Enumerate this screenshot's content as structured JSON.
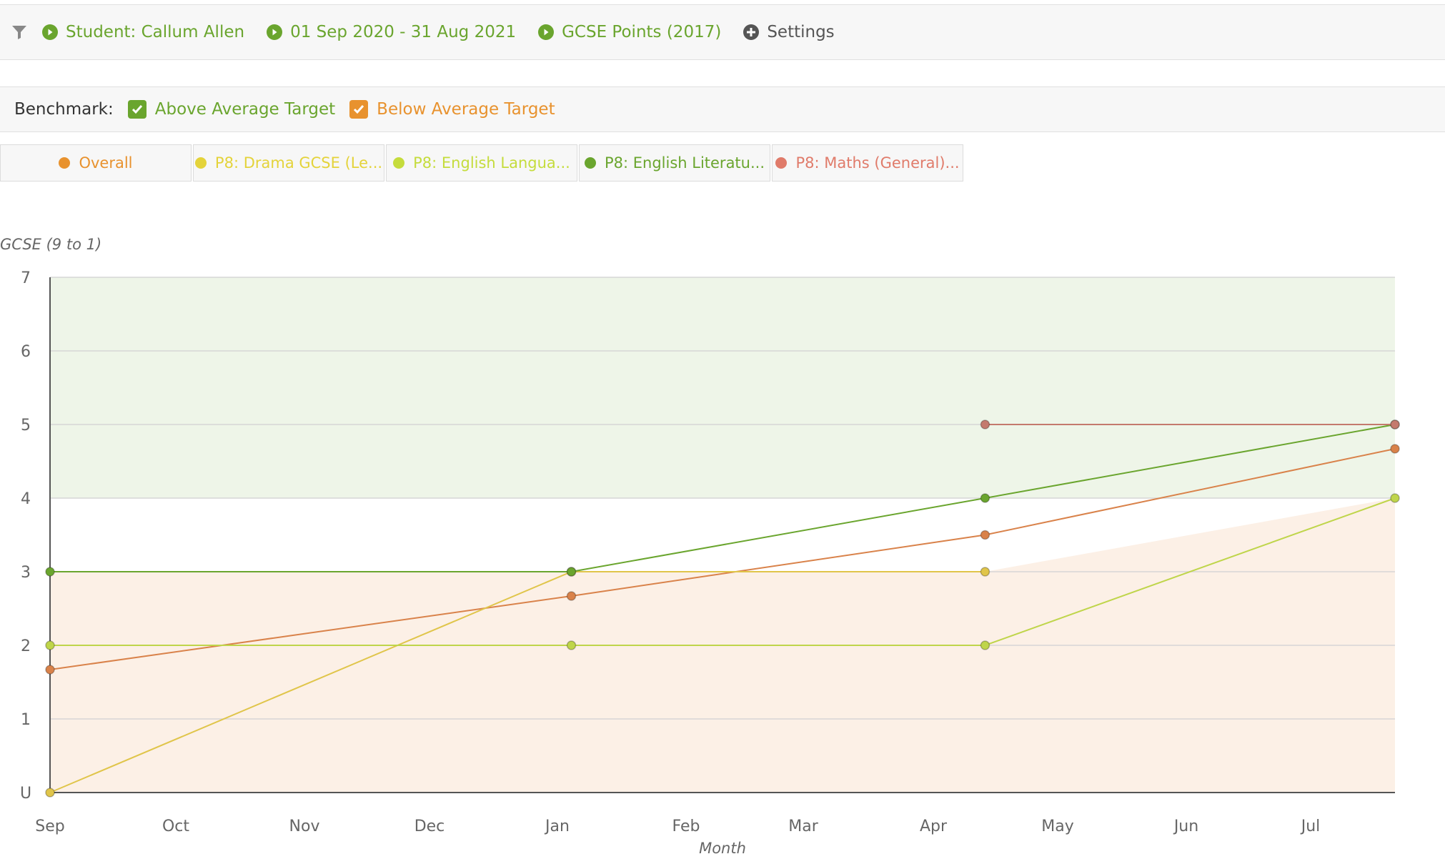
{
  "filters": {
    "student": "Student: Callum Allen",
    "date_range": "01 Sep 2020 - 31 Aug 2021",
    "points": "GCSE Points (2017)",
    "settings": "Settings"
  },
  "benchmark": {
    "label": "Benchmark:",
    "above": {
      "label": "Above Average Target",
      "checked": true,
      "color": "#6aa52e"
    },
    "below": {
      "label": "Below Average Target",
      "checked": true,
      "color": "#e8922e"
    }
  },
  "tabs": [
    {
      "label": "Overall",
      "color": "#e8922e"
    },
    {
      "label": "P8: Drama GCSE (Le...",
      "color": "#e4d33a"
    },
    {
      "label": "P8: English Langua...",
      "color": "#c5dc3c"
    },
    {
      "label": "P8: English Literatu...",
      "color": "#6aa52e"
    },
    {
      "label": "P8: Maths (General)...",
      "color": "#e07b6a"
    }
  ],
  "chart_data": {
    "type": "line",
    "ylabel": "GCSE (9 to 1)",
    "xlabel": "Month",
    "yticks": [
      "U",
      "1",
      "2",
      "3",
      "4",
      "5",
      "6",
      "7"
    ],
    "ylim": [
      0,
      7
    ],
    "xticks": [
      "Sep",
      "Oct",
      "Nov",
      "Dec",
      "Jan",
      "Feb",
      "Mar",
      "Apr",
      "May",
      "Jun",
      "Jul"
    ],
    "grid": true,
    "bands": [
      {
        "name": "Above Average Target",
        "color": "#eef5e8",
        "lower": [
          [
            0,
            4
          ],
          [
            10.5,
            4
          ]
        ],
        "upper": [
          [
            0,
            7
          ],
          [
            10.5,
            7
          ]
        ]
      },
      {
        "name": "Below Average Target",
        "color": "#fcf0e6",
        "lower": [
          [
            0,
            0
          ],
          [
            10.5,
            0
          ]
        ],
        "upper": [
          [
            0,
            3
          ],
          [
            7.3,
            3
          ],
          [
            10.5,
            4
          ]
        ]
      }
    ],
    "series": [
      {
        "name": "Overall",
        "color": "#d9824a",
        "points": [
          [
            0,
            1.67
          ],
          [
            4.07,
            2.67
          ],
          [
            7.3,
            3.5
          ],
          [
            10.5,
            4.67
          ]
        ]
      },
      {
        "name": "P8: Drama GCSE (Le...",
        "color": "#e0c54a",
        "points": [
          [
            0,
            0
          ],
          [
            4.07,
            3
          ],
          [
            7.3,
            3
          ]
        ]
      },
      {
        "name": "P8: English Langua...",
        "color": "#bfd54a",
        "points": [
          [
            0,
            2
          ],
          [
            4.07,
            2
          ],
          [
            7.3,
            2
          ],
          [
            10.5,
            4
          ]
        ]
      },
      {
        "name": "P8: English Literatu...",
        "color": "#6aa52e",
        "points": [
          [
            0,
            3
          ],
          [
            4.07,
            3
          ],
          [
            7.3,
            4
          ],
          [
            10.5,
            5
          ]
        ]
      },
      {
        "name": "P8: Maths (General)...",
        "color": "#c47a6e",
        "points": [
          [
            7.3,
            5
          ],
          [
            10.5,
            5
          ]
        ]
      }
    ]
  }
}
